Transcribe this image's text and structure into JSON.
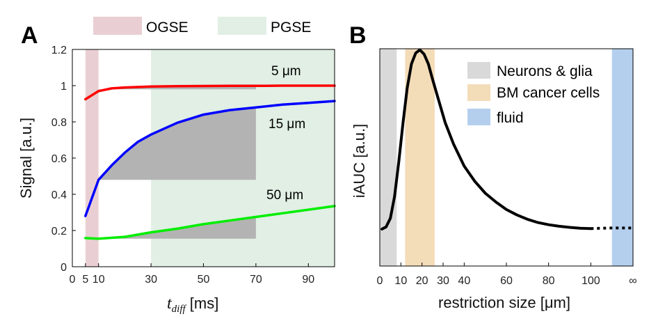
{
  "chart_data": [
    {
      "panel_label": "A",
      "type": "line",
      "xlabel_main": "t",
      "xlabel_sub": "diff",
      "xlabel_unit": " [ms]",
      "ylabel": "Signal [a.u.]",
      "xlim": [
        0,
        100
      ],
      "ylim": [
        0,
        1.2
      ],
      "xticks": [
        0,
        5,
        10,
        30,
        50,
        70,
        90
      ],
      "yticks": [
        0,
        0.2,
        0.4,
        0.6,
        0.8,
        1,
        1.2
      ],
      "legend_placement": "top",
      "legend": [
        {
          "label": "OGSE",
          "color": "#e9cfd3"
        },
        {
          "label": "PGSE",
          "color": "#e1efe4"
        }
      ],
      "bands": [
        {
          "x0": 5,
          "x1": 10,
          "color": "#e9cfd3"
        },
        {
          "x0": 30,
          "x1": 100,
          "color": "#e1efe4"
        }
      ],
      "shaded_regions": [
        {
          "x0": 10,
          "x1": 70,
          "y0": 0.98,
          "color": "#b3b3b3"
        },
        {
          "x0": 10,
          "x1": 70,
          "y0": 0.48,
          "color": "#b3b3b3"
        },
        {
          "x0": 10,
          "x1": 70,
          "y0": 0.155,
          "color": "#b3b3b3"
        }
      ],
      "series": [
        {
          "annotation": "5 μm",
          "color": "#ff0000",
          "x": [
            5,
            10,
            15,
            20,
            30,
            40,
            50,
            60,
            70,
            80,
            90,
            100
          ],
          "y": [
            0.925,
            0.97,
            0.985,
            0.99,
            0.995,
            0.997,
            0.998,
            0.999,
            0.999,
            1.0,
            1.0,
            1.0
          ]
        },
        {
          "annotation": "15 μm",
          "color": "#0000ff",
          "x": [
            5,
            10,
            15,
            20,
            25,
            30,
            40,
            50,
            60,
            70,
            80,
            90,
            100
          ],
          "y": [
            0.28,
            0.48,
            0.56,
            0.63,
            0.69,
            0.73,
            0.795,
            0.84,
            0.865,
            0.88,
            0.895,
            0.905,
            0.915
          ]
        },
        {
          "annotation": "50 μm",
          "color": "#00ee00",
          "x": [
            5,
            10,
            20,
            30,
            40,
            50,
            60,
            70,
            80,
            90,
            100
          ],
          "y": [
            0.158,
            0.155,
            0.165,
            0.19,
            0.21,
            0.235,
            0.255,
            0.275,
            0.295,
            0.315,
            0.335
          ]
        }
      ]
    },
    {
      "panel_label": "B",
      "type": "line",
      "xlabel": "restriction size [μm]",
      "ylabel": "iAUC [a.u.]",
      "xlim": [
        0,
        120
      ],
      "ylim": [
        0,
        1
      ],
      "xticks": [
        "0",
        "10",
        "20",
        "30",
        "40",
        "60",
        "80",
        "100",
        "∞"
      ],
      "yticks": [],
      "legend_placement": "top-right",
      "legend": [
        {
          "label": "Neurons & glia",
          "color": "#d9d9d9"
        },
        {
          "label": "BM cancer cells",
          "color": "#f3dcb8"
        },
        {
          "label": "fluid",
          "color": "#b4cfee"
        }
      ],
      "bands": [
        {
          "x0": 0,
          "x1": 8,
          "color": "#d9d9d9"
        },
        {
          "x0": 12,
          "x1": 26,
          "color": "#f3dcb8"
        },
        {
          "x0": 110,
          "x1": 120,
          "color": "#b4cfee"
        }
      ],
      "series": [
        {
          "color": "#000000",
          "style": "solid",
          "x": [
            1,
            3,
            5,
            7,
            9,
            11,
            13,
            15,
            17,
            19,
            21,
            23,
            25,
            28,
            31,
            35,
            40,
            45,
            50,
            55,
            60,
            65,
            70,
            75,
            80,
            85,
            90,
            95,
            100
          ],
          "y": [
            0.17,
            0.18,
            0.22,
            0.32,
            0.48,
            0.66,
            0.82,
            0.93,
            0.98,
            0.995,
            0.975,
            0.93,
            0.86,
            0.76,
            0.66,
            0.56,
            0.46,
            0.39,
            0.335,
            0.295,
            0.26,
            0.235,
            0.215,
            0.2,
            0.19,
            0.183,
            0.178,
            0.174,
            0.172
          ]
        },
        {
          "color": "#000000",
          "style": "dotted",
          "x": [
            100,
            105,
            110,
            115,
            120
          ],
          "y": [
            0.172,
            0.174,
            0.175,
            0.175,
            0.175
          ]
        }
      ]
    }
  ]
}
